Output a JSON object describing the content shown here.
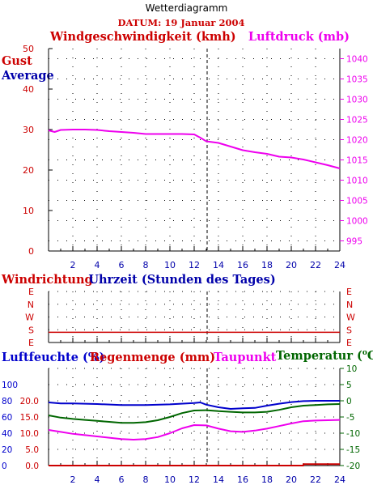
{
  "page_title": "Wetterdiagramm",
  "date_label": "DATUM: 19 Januar 2004",
  "colors": {
    "red": "#cc0000",
    "blue": "#0000cc",
    "magenta": "#ee00ee",
    "green": "#006600",
    "dark_blue": "#0000aa"
  },
  "chart_data": [
    {
      "type": "line",
      "title": "",
      "left_axis_title": "Windgeschwindigkeit (kmh)",
      "right_axis_title": "Luftdruck (mb)",
      "legend": [
        "Gust",
        "Average"
      ],
      "xlim": [
        0,
        24
      ],
      "x_ticks": [
        "2",
        "4",
        "6",
        "8",
        "10",
        "12",
        "14",
        "16",
        "18",
        "20",
        "22",
        "24"
      ],
      "left_ylim": [
        0,
        50
      ],
      "left_ticks": [
        "0",
        "10",
        "20",
        "30",
        "40",
        "50"
      ],
      "right_ylim": [
        992.5,
        1042.5
      ],
      "right_ticks": [
        "995",
        "1000",
        "1005",
        "1010",
        "1015",
        "1020",
        "1025",
        "1030",
        "1035",
        "1040"
      ],
      "grid": true,
      "series": [
        {
          "name": "Luftdruck (mb)",
          "axis": "right",
          "color": "#ee00ee",
          "x": [
            0,
            0.5,
            1,
            2,
            3,
            4,
            5,
            6,
            7,
            8,
            9,
            10,
            11,
            12,
            12.5,
            13,
            14,
            15,
            16,
            17,
            18,
            19,
            20,
            21,
            22,
            23,
            24
          ],
          "y": [
            1022.3,
            1021.9,
            1022.4,
            1022.5,
            1022.5,
            1022.4,
            1022.1,
            1021.9,
            1021.7,
            1021.4,
            1021.4,
            1021.4,
            1021.4,
            1021.3,
            1020.5,
            1019.6,
            1019.2,
            1018.3,
            1017.4,
            1016.9,
            1016.5,
            1015.8,
            1015.6,
            1015.1,
            1014.4,
            1013.7,
            1012.9
          ]
        }
      ]
    },
    {
      "type": "line",
      "title": "",
      "left_axis_title": "Windrichtung",
      "x_axis_title": "Uhrzeit (Stunden des Tages)",
      "xlim": [
        0,
        24
      ],
      "categories": [
        "E",
        "N",
        "W",
        "S",
        "E"
      ],
      "grid": true,
      "series": [
        {
          "name": "Windrichtung",
          "color": "#cc0000",
          "x": [
            0,
            24
          ],
          "y": [
            "S",
            "S"
          ],
          "y_value": 0.8
        }
      ]
    },
    {
      "type": "line",
      "title": "",
      "left_titles": [
        "Luftfeuchte (%)",
        "Regenmenge (mm)"
      ],
      "right_titles": [
        "Taupunkt",
        "Temperatur (",
        "o",
        "C)"
      ],
      "xlim": [
        0,
        24
      ],
      "x_ticks": [
        "2",
        "4",
        "6",
        "8",
        "10",
        "12",
        "14",
        "16",
        "18",
        "20",
        "22",
        "24"
      ],
      "humidity_ticks": [
        "0",
        "20",
        "40",
        "60",
        "80",
        "100"
      ],
      "rain_ticks": [
        "0.0",
        "5.0",
        "10.0",
        "15.0",
        "20.0"
      ],
      "temp_ticks": [
        "-20",
        "-15",
        "-10",
        "-5",
        "0",
        "5",
        "10"
      ],
      "temp_ylim": [
        -20,
        10
      ],
      "grid": true,
      "series": [
        {
          "name": "Luftfeuchte (%)",
          "axis": "temp",
          "color": "#0000cc",
          "x": [
            0,
            1,
            2,
            4,
            6,
            8,
            10,
            12,
            12.5,
            13,
            14,
            15,
            16,
            17,
            18,
            19,
            20,
            21,
            22,
            24
          ],
          "y": [
            -0.5,
            -0.8,
            -0.8,
            -1.0,
            -1.3,
            -1.3,
            -1.1,
            -0.7,
            -0.5,
            -1.2,
            -2.0,
            -2.5,
            -2.3,
            -2.2,
            -1.5,
            -0.9,
            -0.4,
            -0.1,
            0,
            0
          ]
        },
        {
          "name": "Temperatur",
          "axis": "temp",
          "color": "#006600",
          "x": [
            0,
            1,
            2,
            3,
            4,
            5,
            6,
            7,
            8,
            9,
            10,
            11,
            12,
            13,
            14,
            15,
            16,
            17,
            18,
            19,
            20,
            21,
            22,
            23,
            24
          ],
          "y": [
            -4.5,
            -5.2,
            -5.6,
            -5.9,
            -6.2,
            -6.5,
            -6.8,
            -6.8,
            -6.6,
            -6.0,
            -5.0,
            -3.8,
            -3.0,
            -2.9,
            -3.2,
            -3.4,
            -3.6,
            -3.6,
            -3.4,
            -2.8,
            -2.0,
            -1.5,
            -1.3,
            -1.1,
            -1.0
          ]
        },
        {
          "name": "Taupunkt",
          "axis": "temp",
          "color": "#ee00ee",
          "x": [
            0,
            1,
            2,
            3,
            4,
            5,
            6,
            7,
            8,
            9,
            10,
            11,
            12,
            13,
            14,
            15,
            16,
            17,
            18,
            19,
            20,
            21,
            22,
            23,
            24
          ],
          "y": [
            -9.0,
            -9.6,
            -10.2,
            -10.6,
            -11.0,
            -11.4,
            -11.8,
            -12.0,
            -11.8,
            -11.2,
            -10.0,
            -8.5,
            -7.5,
            -7.6,
            -8.6,
            -9.4,
            -9.6,
            -9.2,
            -8.6,
            -7.8,
            -7.0,
            -6.3,
            -6.1,
            -6.0,
            -5.9
          ]
        },
        {
          "name": "Regenmenge (mm)",
          "axis": "rain",
          "color": "#cc0000",
          "x": [
            0,
            21,
            21,
            24
          ],
          "y": [
            0,
            0,
            0.3,
            0.3
          ]
        }
      ]
    }
  ]
}
